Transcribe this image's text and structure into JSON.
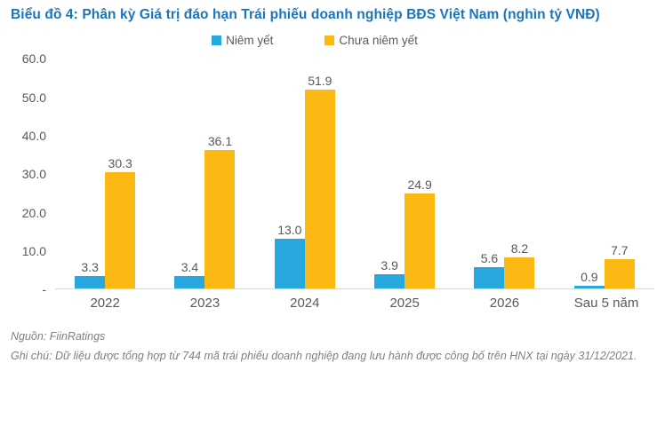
{
  "chart_data": {
    "type": "bar",
    "title": "Biểu đồ 4: Phân kỳ Giá trị đáo hạn Trái phiếu doanh nghiệp BĐS Việt Nam (nghìn tỷ VNĐ)",
    "categories": [
      "2022",
      "2023",
      "2024",
      "2025",
      "2026",
      "Sau 5 năm"
    ],
    "series": [
      {
        "name": "Niêm yết",
        "color": "#29A8E0",
        "values": [
          3.3,
          3.4,
          13.0,
          3.9,
          5.6,
          0.9
        ]
      },
      {
        "name": "Chưa niêm yết",
        "color": "#FDB913",
        "values": [
          30.3,
          36.1,
          51.9,
          24.9,
          8.2,
          7.7
        ]
      }
    ],
    "ylim": [
      0,
      60
    ],
    "yticks": [
      {
        "label": "60.0",
        "value": 60
      },
      {
        "label": "50.0",
        "value": 50
      },
      {
        "label": "40.0",
        "value": 40
      },
      {
        "label": "30.0",
        "value": 30
      },
      {
        "label": "20.0",
        "value": 20
      },
      {
        "label": "10.0",
        "value": 10
      },
      {
        "label": "-",
        "value": 0
      }
    ],
    "grid": false,
    "legend_position": "top",
    "value_labels": true,
    "xlabel": "",
    "ylabel": ""
  },
  "colors": {
    "title_blue": "#1B74BC",
    "bar_blue": "#29A8E0",
    "bar_yellow": "#FDB913",
    "chart_text_gray": "#595959",
    "footer_gray": "#808080",
    "axis_line": "#D9D9D9"
  },
  "footer": {
    "source": "Nguồn: FiinRatings",
    "note": "Ghi chú: Dữ liệu được tổng hợp từ 744 mã trái phiếu doanh nghiệp đang lưu hành được công bố trên HNX tại ngày 31/12/2021."
  }
}
